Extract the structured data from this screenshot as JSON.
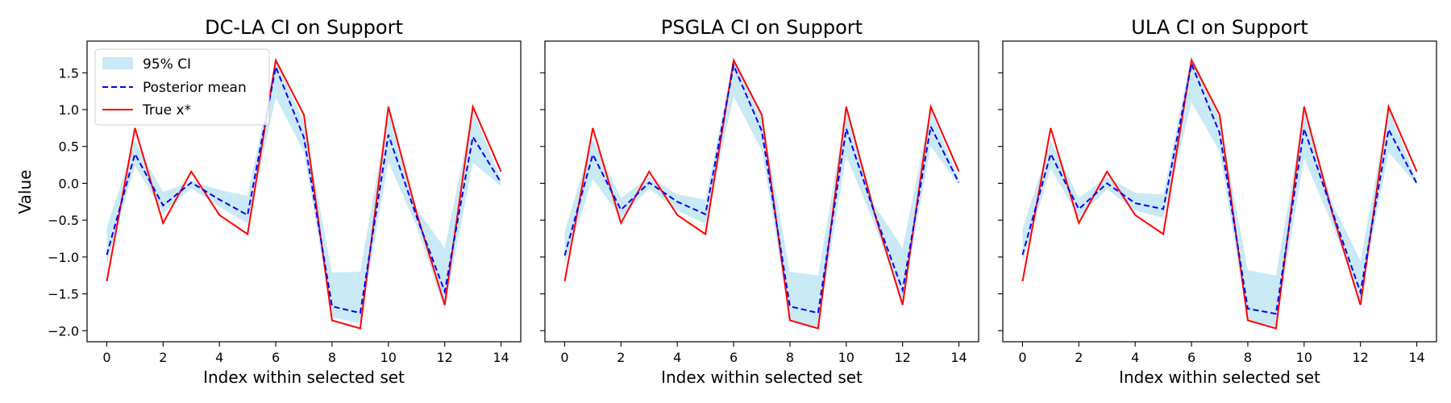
{
  "chart_data": {
    "type": "line",
    "x": [
      0,
      1,
      2,
      3,
      4,
      5,
      6,
      7,
      8,
      9,
      10,
      11,
      12,
      13,
      14
    ],
    "xticks": [
      0,
      2,
      4,
      6,
      8,
      10,
      12,
      14
    ],
    "yticks": [
      -2.0,
      -1.5,
      -1.0,
      -0.5,
      0.0,
      0.5,
      1.0,
      1.5
    ],
    "xlim": [
      -0.7,
      14.7
    ],
    "ylim": [
      -2.15,
      1.93
    ],
    "xlabel": "Index within selected set",
    "ylabel": "Value",
    "shared_y": true,
    "legend": {
      "placement": "top-left",
      "entries": [
        "95% CI",
        "Posterior mean",
        "True x*"
      ]
    },
    "colors": {
      "ci_fill": "#87ceeb",
      "posterior_mean": "#0000ff",
      "true_x": "#ff0000"
    },
    "true_x": [
      -1.33,
      0.75,
      -0.54,
      0.16,
      -0.43,
      -0.69,
      1.67,
      0.93,
      -1.86,
      -1.97,
      1.04,
      -0.4,
      -1.65,
      1.04,
      0.16
    ],
    "panels": [
      {
        "title": "DC-LA CI on Support",
        "posterior_mean": [
          -0.97,
          0.4,
          -0.3,
          0.01,
          -0.22,
          -0.43,
          1.58,
          0.62,
          -1.67,
          -1.76,
          0.66,
          -0.45,
          -1.47,
          0.63,
          0.01
        ],
        "ci_lower": [
          -1.1,
          0.24,
          -0.4,
          -0.07,
          -0.32,
          -0.55,
          1.16,
          0.43,
          -1.82,
          -1.9,
          0.29,
          -0.58,
          -1.72,
          0.28,
          -0.04
        ],
        "ci_upper": [
          -0.6,
          0.57,
          -0.12,
          0.03,
          -0.09,
          -0.17,
          1.67,
          0.84,
          -1.21,
          -1.2,
          1.0,
          -0.34,
          -0.88,
          0.99,
          0.06
        ]
      },
      {
        "title": "PSGLA CI on Support",
        "posterior_mean": [
          -0.98,
          0.39,
          -0.36,
          0.01,
          -0.25,
          -0.42,
          1.6,
          0.71,
          -1.67,
          -1.76,
          0.74,
          -0.4,
          -1.45,
          0.77,
          0.01
        ],
        "ci_lower": [
          -1.1,
          0.06,
          -0.47,
          -0.07,
          -0.37,
          -0.55,
          1.18,
          0.45,
          -1.86,
          -1.95,
          0.37,
          -0.55,
          -1.6,
          0.5,
          -0.02
        ],
        "ci_upper": [
          -0.65,
          0.6,
          -0.2,
          0.09,
          -0.15,
          -0.22,
          1.7,
          0.92,
          -1.2,
          -1.25,
          1.0,
          -0.29,
          -0.88,
          1.01,
          0.05
        ]
      },
      {
        "title": "ULA CI on Support",
        "posterior_mean": [
          -0.97,
          0.4,
          -0.35,
          0.0,
          -0.27,
          -0.35,
          1.62,
          0.68,
          -1.7,
          -1.77,
          0.74,
          -0.38,
          -1.48,
          0.73,
          0.0
        ],
        "ci_lower": [
          -1.06,
          0.2,
          -0.46,
          -0.08,
          -0.37,
          -0.47,
          1.1,
          0.43,
          -1.87,
          -1.94,
          0.34,
          -0.56,
          -1.57,
          0.42,
          -0.02
        ],
        "ci_upper": [
          -0.62,
          0.58,
          -0.2,
          0.09,
          -0.13,
          -0.15,
          1.75,
          0.88,
          -1.18,
          -1.25,
          1.0,
          -0.27,
          -1.05,
          1.02,
          0.04
        ]
      }
    ]
  }
}
